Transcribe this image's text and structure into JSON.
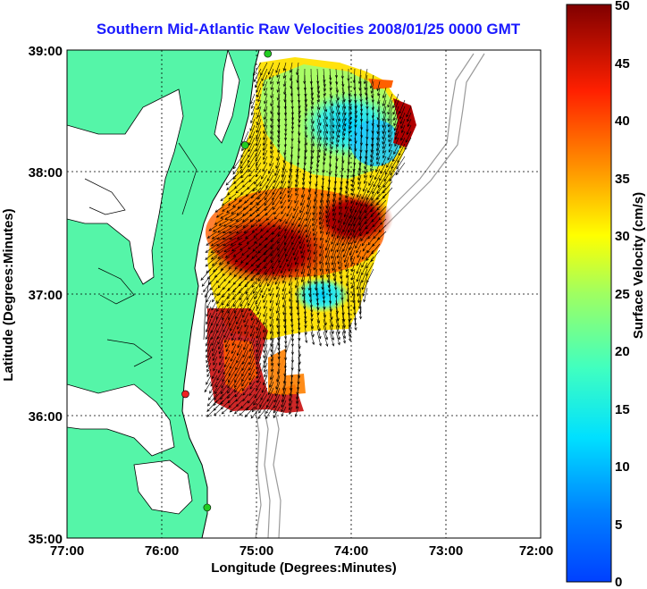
{
  "title": "Southern Mid-Atlantic Raw Velocities 2008/01/25 0000 GMT",
  "xlabel": "Longitude (Degrees:Minutes)",
  "ylabel": "Latitude (Degrees:Minutes)",
  "colorbar_label": "Surface Velocity (cm/s)",
  "x_ticks": [
    "77:00",
    "76:00",
    "75:00",
    "74:00",
    "73:00",
    "72:00"
  ],
  "y_ticks": [
    "39:00",
    "38:00",
    "37:00",
    "36:00",
    "35:00"
  ],
  "colorbar_ticks": [
    "50",
    "45",
    "40",
    "35",
    "30",
    "25",
    "20",
    "15",
    "10",
    "5",
    "0"
  ],
  "colors": {
    "land": "#55f5a8",
    "ocean": "#ffffff",
    "coastline": "#000000",
    "bathymetry": "#9a9a9a",
    "title": "#1a1aff",
    "station_marker": "#22cc22",
    "station_marker_alt": "#ee2222"
  },
  "map": {
    "lon_range": [
      -77,
      -72
    ],
    "lat_range": [
      35,
      39
    ],
    "grid": true,
    "colormap": "jet",
    "velocity_range_cm_s": [
      0,
      50
    ],
    "stations": [
      {
        "lon": -74.88,
        "lat": 38.97,
        "color": "green"
      },
      {
        "lon": -75.12,
        "lat": 38.22,
        "color": "green"
      },
      {
        "lon": -75.75,
        "lat": 36.18,
        "color": "red"
      },
      {
        "lon": -75.52,
        "lat": 35.25,
        "color": "green"
      }
    ]
  }
}
